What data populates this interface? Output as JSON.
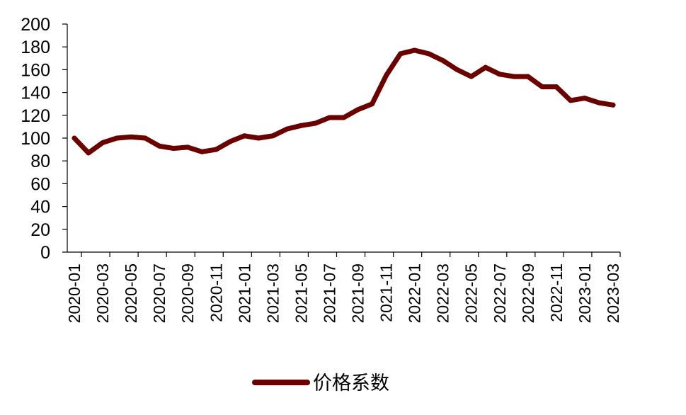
{
  "chart_data": {
    "type": "line",
    "title": "",
    "xlabel": "",
    "ylabel": "",
    "ylim": [
      0,
      200
    ],
    "yticks": [
      0,
      20,
      40,
      60,
      80,
      100,
      120,
      140,
      160,
      180,
      200
    ],
    "grid": false,
    "legend_position": "bottom-center",
    "line_color": "#6B0000",
    "x": [
      "2020-01",
      "2020-02",
      "2020-03",
      "2020-04",
      "2020-05",
      "2020-06",
      "2020-07",
      "2020-08",
      "2020-09",
      "2020-10",
      "2020-11",
      "2020-12",
      "2021-01",
      "2021-02",
      "2021-03",
      "2021-04",
      "2021-05",
      "2021-06",
      "2021-07",
      "2021-08",
      "2021-09",
      "2021-10",
      "2021-11",
      "2021-12",
      "2022-01",
      "2022-02",
      "2022-03",
      "2022-04",
      "2022-05",
      "2022-06",
      "2022-07",
      "2022-08",
      "2022-09",
      "2022-10",
      "2022-11",
      "2022-12",
      "2023-01",
      "2023-02",
      "2023-03"
    ],
    "x_tick_labels": [
      "2020-01",
      "2020-03",
      "2020-05",
      "2020-07",
      "2020-09",
      "2020-11",
      "2021-01",
      "2021-03",
      "2021-05",
      "2021-07",
      "2021-09",
      "2021-11",
      "2022-01",
      "2022-03",
      "2022-05",
      "2022-07",
      "2022-09",
      "2022-11",
      "2023-01",
      "2023-03"
    ],
    "series": [
      {
        "name": "价格系数",
        "values": [
          100,
          87,
          96,
          100,
          101,
          100,
          93,
          91,
          92,
          88,
          90,
          97,
          102,
          100,
          102,
          108,
          111,
          113,
          118,
          118,
          125,
          130,
          155,
          174,
          177,
          174,
          168,
          160,
          154,
          162,
          156,
          154,
          154,
          145,
          145,
          133,
          135,
          131,
          129
        ]
      }
    ]
  }
}
